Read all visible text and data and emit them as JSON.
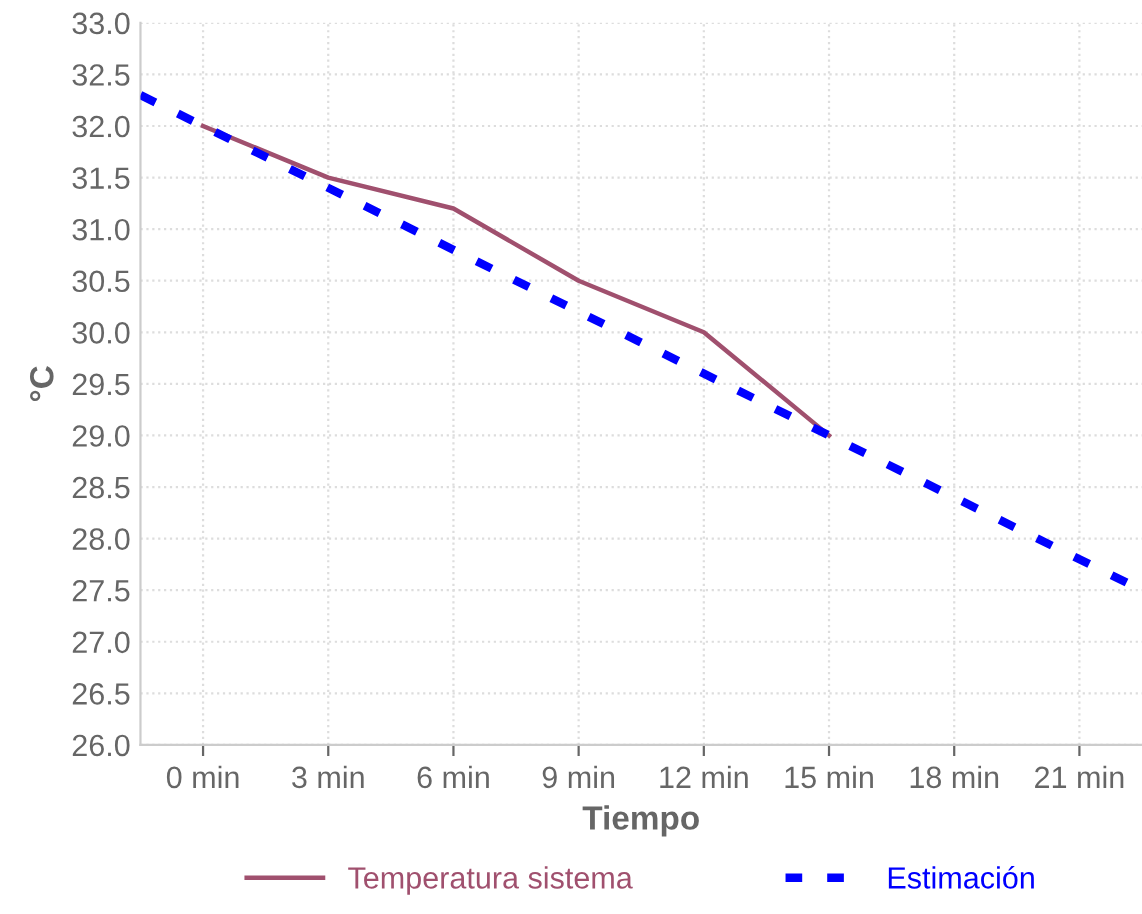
{
  "chart_data": {
    "type": "line",
    "xlabel": "Tiempo",
    "ylabel": "°C",
    "xlim": [
      -1.5,
      22.5
    ],
    "xticks": [
      {
        "value": 0,
        "label": "0 min"
      },
      {
        "value": 3,
        "label": "3 min"
      },
      {
        "value": 6,
        "label": "6 min"
      },
      {
        "value": 9,
        "label": "9 min"
      },
      {
        "value": 12,
        "label": "12 min"
      },
      {
        "value": 15,
        "label": "15 min"
      },
      {
        "value": 18,
        "label": "18 min"
      },
      {
        "value": 21,
        "label": "21 min"
      }
    ],
    "ylim": [
      26.0,
      33.0
    ],
    "yticks": [
      {
        "value": 26.0,
        "label": "26.0"
      },
      {
        "value": 26.5,
        "label": "26.5"
      },
      {
        "value": 27.0,
        "label": "27.0"
      },
      {
        "value": 27.5,
        "label": "27.5"
      },
      {
        "value": 28.0,
        "label": "28.0"
      },
      {
        "value": 28.5,
        "label": "28.5"
      },
      {
        "value": 29.0,
        "label": "29.0"
      },
      {
        "value": 29.5,
        "label": "29.5"
      },
      {
        "value": 30.0,
        "label": "30.0"
      },
      {
        "value": 30.5,
        "label": "30.5"
      },
      {
        "value": 31.0,
        "label": "31.0"
      },
      {
        "value": 31.5,
        "label": "31.5"
      },
      {
        "value": 32.0,
        "label": "32.0"
      },
      {
        "value": 32.5,
        "label": "32.5"
      },
      {
        "value": 33.0,
        "label": "33.0"
      }
    ],
    "grid": true,
    "legend": "bottom",
    "series": [
      {
        "name": "Temperatura sistema",
        "color": "#a0506e",
        "line_style": "solid",
        "x": [
          0,
          3,
          6,
          9,
          12,
          15
        ],
        "values": [
          32.0,
          31.5,
          31.2,
          30.5,
          30.0,
          29.0
        ]
      },
      {
        "name": "Estimación",
        "color": "#0000ff",
        "line_style": "dashed",
        "x": [
          -1.5,
          22.5
        ],
        "values": [
          32.3,
          27.5
        ]
      }
    ]
  }
}
